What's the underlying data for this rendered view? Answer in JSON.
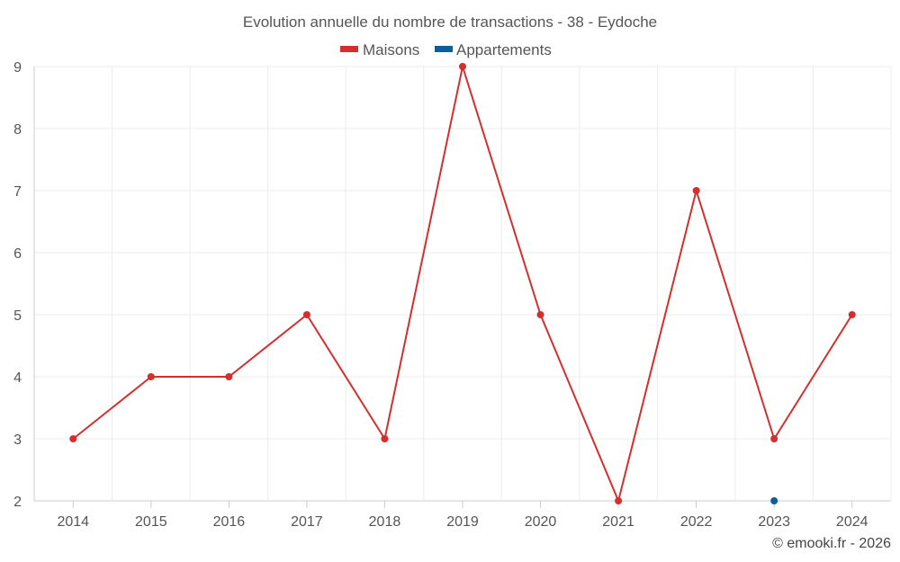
{
  "chart_data": {
    "type": "line",
    "title": "Evolution annuelle du nombre de transactions - 38 - Eydoche",
    "categories": [
      "2014",
      "2015",
      "2016",
      "2017",
      "2018",
      "2019",
      "2020",
      "2021",
      "2022",
      "2023",
      "2024"
    ],
    "series": [
      {
        "name": "Maisons",
        "color": "#d32f2f",
        "values": [
          3,
          4,
          4,
          5,
          3,
          9,
          5,
          2,
          7,
          3,
          5
        ]
      },
      {
        "name": "Appartements",
        "color": "#0a5f9a",
        "values": [
          null,
          null,
          null,
          null,
          null,
          null,
          null,
          null,
          null,
          2,
          null
        ]
      }
    ],
    "ylim": [
      2,
      9
    ],
    "yticks": [
      2,
      3,
      4,
      5,
      6,
      7,
      8,
      9
    ],
    "xlabel": "",
    "ylabel": "",
    "grid": true,
    "legend": "top-center"
  },
  "credit": "© emooki.fr - 2026"
}
